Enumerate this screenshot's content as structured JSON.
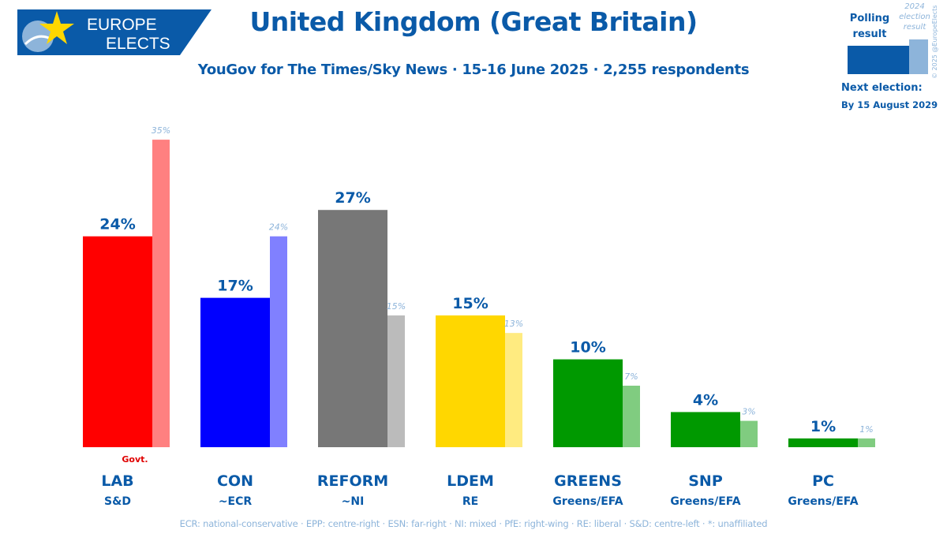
{
  "logo": {
    "line1": "EUROPE",
    "line2": "ELECTS"
  },
  "header": {
    "title": "United Kingdom (Great Britain)",
    "subtitle": "YouGov for The Times/Sky News · 15-16 June 2025 · 2,255 respondents"
  },
  "legend": {
    "polling_label": [
      "Polling",
      "result"
    ],
    "election_label": [
      "2024",
      "election",
      "result"
    ],
    "colors": {
      "main": "#0a5aa8",
      "previous": "#8db4da"
    }
  },
  "copyright": "© 2025 @EuropeElects",
  "next_election": {
    "label": "Next election:",
    "date": "By 15 August 2029"
  },
  "footer": "ECR: national-conservative · EPP: centre-right · ESN: far-right · NI: mixed · PfE: right-wing · RE: liberal · S&D: centre-left · *: unaffiliated",
  "chart_data": {
    "type": "bar",
    "title": "United Kingdom (Great Britain)",
    "ylim": [
      0,
      35
    ],
    "series": [
      {
        "name": "Polling result",
        "values": [
          24,
          17,
          27,
          15,
          10,
          4,
          1
        ]
      },
      {
        "name": "2024 election result",
        "values": [
          35,
          24,
          15,
          13,
          7,
          3,
          1
        ]
      }
    ],
    "categories": [
      "LAB",
      "CON",
      "REFORM",
      "LDEM",
      "GREENS",
      "SNP",
      "PC"
    ],
    "parties": [
      {
        "name": "LAB",
        "group": "S&D",
        "poll": 24,
        "poll_label": "24%",
        "prev": 35,
        "prev_label": "35%",
        "color": "#ff0000",
        "prev_color": "#ff8080",
        "note": "Govt."
      },
      {
        "name": "CON",
        "group": "~ECR",
        "poll": 17,
        "poll_label": "17%",
        "prev": 24,
        "prev_label": "24%",
        "color": "#0000ff",
        "prev_color": "#8080ff",
        "note": ""
      },
      {
        "name": "REFORM",
        "group": "~NI",
        "poll": 27,
        "poll_label": "27%",
        "prev": 15,
        "prev_label": "15%",
        "color": "#777777",
        "prev_color": "#bbbbbb",
        "note": ""
      },
      {
        "name": "LDEM",
        "group": "RE",
        "poll": 15,
        "poll_label": "15%",
        "prev": 13,
        "prev_label": "13%",
        "color": "#ffd700",
        "prev_color": "#ffeb80",
        "note": ""
      },
      {
        "name": "GREENS",
        "group": "Greens/EFA",
        "poll": 10,
        "poll_label": "10%",
        "prev": 7,
        "prev_label": "7%",
        "color": "#009900",
        "prev_color": "#80cc80",
        "note": ""
      },
      {
        "name": "SNP",
        "group": "Greens/EFA",
        "poll": 4,
        "poll_label": "4%",
        "prev": 3,
        "prev_label": "3%",
        "color": "#009900",
        "prev_color": "#80cc80",
        "note": ""
      },
      {
        "name": "PC",
        "group": "Greens/EFA",
        "poll": 1,
        "poll_label": "1%",
        "prev": 1,
        "prev_label": "1%",
        "color": "#009900",
        "prev_color": "#80cc80",
        "note": ""
      }
    ],
    "label_color": "#0a5aa8",
    "prev_label_color": "#8db4da",
    "note_color": "#e00000"
  }
}
